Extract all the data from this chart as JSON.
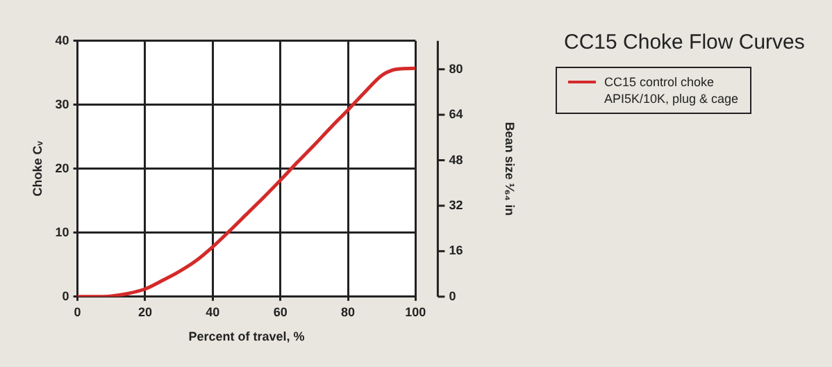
{
  "chart_data": {
    "type": "line",
    "title": "CC15 Choke Flow Curves",
    "xlabel": "Percent of travel, %",
    "ylabel": "Choke Cᵥ",
    "y2label": "Bean size ¹⁄₆₄ in",
    "x": [
      0,
      5,
      10,
      15,
      20,
      25,
      30,
      35,
      40,
      45,
      50,
      55,
      60,
      65,
      70,
      75,
      80,
      85,
      90,
      93,
      95,
      100
    ],
    "series": [
      {
        "name": "CC15 control choke\nAPI5K/10K, plug & cage",
        "color": "#d42a2a",
        "values": [
          0,
          0,
          0.1,
          0.5,
          1.2,
          2.5,
          3.9,
          5.6,
          7.8,
          10.3,
          12.9,
          15.5,
          18.2,
          21,
          23.7,
          26.5,
          29.2,
          32,
          34.6,
          35.4,
          35.6,
          35.7
        ]
      }
    ],
    "xlim": [
      0,
      100
    ],
    "xticks": [
      0,
      20,
      40,
      60,
      80,
      100
    ],
    "ylim": [
      0,
      40
    ],
    "yticks": [
      0,
      10,
      20,
      30,
      40
    ],
    "y2lim": [
      0,
      90
    ],
    "y2ticks": [
      0,
      16,
      32,
      48,
      64,
      80
    ],
    "grid": true,
    "legend": "right",
    "marker": "none",
    "line_style": "solid"
  }
}
